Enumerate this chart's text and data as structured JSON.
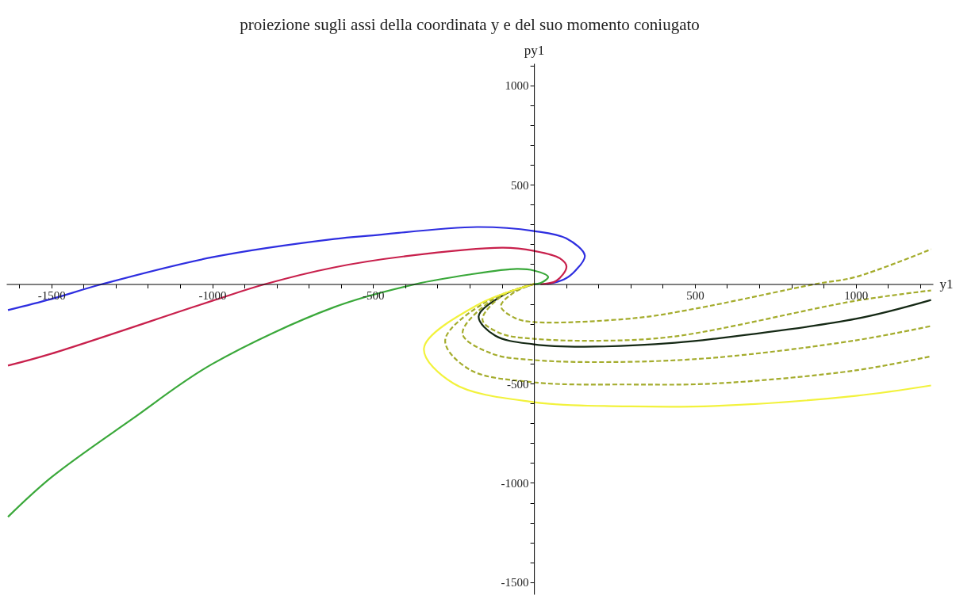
{
  "chart_data": {
    "type": "line",
    "title": "proiezione sugli assi della coordinata y e del suo momento coniugato",
    "xlabel": "y1",
    "ylabel": "py1",
    "xlim": [
      -1640,
      1240
    ],
    "ylim": [
      -1560,
      1110
    ],
    "xticks": [
      {
        "value": -1600,
        "label": null
      },
      -1500,
      {
        "value": -1400,
        "label": null
      },
      {
        "value": -1300,
        "label": null
      },
      {
        "value": -1200,
        "label": null
      },
      {
        "value": -1100,
        "label": null
      },
      -1000,
      {
        "value": -900,
        "label": null
      },
      {
        "value": -800,
        "label": null
      },
      {
        "value": -700,
        "label": null
      },
      {
        "value": -600,
        "label": null
      },
      -500,
      {
        "value": -400,
        "label": null
      },
      {
        "value": -300,
        "label": null
      },
      {
        "value": -200,
        "label": null
      },
      {
        "value": -100,
        "label": null
      },
      {
        "value": 100,
        "label": null
      },
      {
        "value": 200,
        "label": null
      },
      {
        "value": 300,
        "label": null
      },
      {
        "value": 400,
        "label": null
      },
      500,
      {
        "value": 600,
        "label": null
      },
      {
        "value": 700,
        "label": null
      },
      {
        "value": 800,
        "label": null
      },
      {
        "value": 900,
        "label": null
      },
      1000,
      {
        "value": 1100,
        "label": null
      },
      {
        "value": 1200,
        "label": null
      }
    ],
    "yticks": [
      -1500,
      {
        "value": -1400,
        "label": null
      },
      {
        "value": -1300,
        "label": null
      },
      {
        "value": -1200,
        "label": null
      },
      {
        "value": -1100,
        "label": null
      },
      -1000,
      {
        "value": -900,
        "label": null
      },
      {
        "value": -800,
        "label": null
      },
      {
        "value": -700,
        "label": null
      },
      {
        "value": -600,
        "label": null
      },
      -500,
      {
        "value": -400,
        "label": null
      },
      {
        "value": -300,
        "label": null
      },
      {
        "value": -200,
        "label": null
      },
      {
        "value": -100,
        "label": null
      },
      {
        "value": 100,
        "label": null
      },
      {
        "value": 200,
        "label": null
      },
      {
        "value": 300,
        "label": null
      },
      {
        "value": 400,
        "label": null
      },
      500,
      {
        "value": 600,
        "label": null
      },
      {
        "value": 700,
        "label": null
      },
      {
        "value": 800,
        "label": null
      },
      {
        "value": 900,
        "label": null
      },
      1000,
      {
        "value": 1100,
        "label": null
      }
    ],
    "grid": false,
    "series": [
      {
        "color": "#2e2ee0",
        "line_style": "solid",
        "x": [
          -1635,
          -1500,
          -1342,
          -1000,
          -621,
          -500,
          -177,
          0,
          100,
          158,
          130,
          94,
          40
        ],
        "values": [
          -131,
          -75,
          0,
          135,
          227,
          245,
          287,
          267,
          230,
          143,
          70,
          24,
          0
        ]
      },
      {
        "color": "#c8204c",
        "line_style": "solid",
        "x": [
          -1635,
          -1500,
          -1000,
          -835,
          -621,
          -400,
          -96,
          0,
          80,
          101,
          69,
          20
        ],
        "values": [
          -410,
          -350,
          -84,
          0,
          84,
          140,
          183,
          167,
          130,
          88,
          16,
          0
        ]
      },
      {
        "color": "#3aa83a",
        "line_style": "solid",
        "x": [
          -1635,
          -1500,
          -1250,
          -1000,
          -621,
          -367,
          -200,
          -54,
          0,
          44,
          20,
          0
        ],
        "values": [
          -1171,
          -972,
          -680,
          -402,
          -116,
          0,
          48,
          76,
          68,
          36,
          5,
          0
        ]
      },
      {
        "color": "#a4ac2c",
        "line_style": "dashed",
        "x": [
          0,
          -60,
          -103,
          -60,
          0,
          315,
          500,
          874,
          1000,
          1234
        ],
        "values": [
          0,
          -40,
          -111,
          -170,
          -191,
          -171,
          -124,
          0,
          36,
          175
        ]
      },
      {
        "color": "#142814",
        "line_style": "solid",
        "x": [
          0,
          -100,
          -172,
          -120,
          0,
          150,
          438,
          560,
          1000,
          1234
        ],
        "values": [
          0,
          -60,
          -163,
          -260,
          -303,
          -315,
          -295,
          -275,
          -175,
          -80
        ]
      },
      {
        "color": "#a4ac2c",
        "line_style": "dashed",
        "x": [
          0,
          -100,
          -160,
          -100,
          0,
          200,
          438,
          1000,
          1234
        ],
        "values": [
          0,
          -60,
          -180,
          -250,
          -275,
          -285,
          -263,
          -84,
          -32
        ]
      },
      {
        "color": "#a4ac2c",
        "line_style": "dashed",
        "x": [
          0,
          -130,
          -222,
          -130,
          0,
          250,
          562,
          1000,
          1234
        ],
        "values": [
          0,
          -80,
          -250,
          -350,
          -382,
          -392,
          -370,
          -283,
          -211
        ]
      },
      {
        "color": "#a4ac2c",
        "line_style": "dashed",
        "x": [
          0,
          -150,
          -276,
          -200,
          0,
          300,
          562,
          1000,
          1234
        ],
        "values": [
          0,
          -90,
          -283,
          -430,
          -494,
          -505,
          -500,
          -434,
          -363
        ]
      },
      {
        "color": "#f2f23c",
        "line_style": "solid",
        "x": [
          0,
          -170,
          -342,
          -250,
          0,
          300,
          562,
          1000,
          1234
        ],
        "values": [
          0,
          -100,
          -323,
          -500,
          -594,
          -615,
          -613,
          -562,
          -510
        ]
      }
    ]
  }
}
